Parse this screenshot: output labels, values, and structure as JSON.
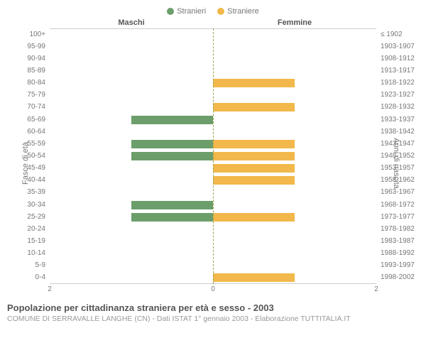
{
  "legend": {
    "male": {
      "label": "Stranieri",
      "color": "#6b9e6b"
    },
    "female": {
      "label": "Straniere",
      "color": "#f2b84b"
    }
  },
  "headers": {
    "male": "Maschi",
    "female": "Femmine"
  },
  "axis_labels": {
    "left": "Fasce di età",
    "right": "Anni di nascita"
  },
  "xlim": 2,
  "x_tick_labels": {
    "leftEnd": "2",
    "center": "0",
    "rightEnd": "2"
  },
  "center_line_color": "#a0a050",
  "background_color": "#ffffff",
  "tick_color": "#cccccc",
  "rows": [
    {
      "age": "100+",
      "birth": "≤ 1902",
      "m": 0,
      "f": 0
    },
    {
      "age": "95-99",
      "birth": "1903-1907",
      "m": 0,
      "f": 0
    },
    {
      "age": "90-94",
      "birth": "1908-1912",
      "m": 0,
      "f": 0
    },
    {
      "age": "85-89",
      "birth": "1913-1917",
      "m": 0,
      "f": 0
    },
    {
      "age": "80-84",
      "birth": "1918-1922",
      "m": 0,
      "f": 1
    },
    {
      "age": "75-79",
      "birth": "1923-1927",
      "m": 0,
      "f": 0
    },
    {
      "age": "70-74",
      "birth": "1928-1932",
      "m": 0,
      "f": 1
    },
    {
      "age": "65-69",
      "birth": "1933-1937",
      "m": 1,
      "f": 0
    },
    {
      "age": "60-64",
      "birth": "1938-1942",
      "m": 0,
      "f": 0
    },
    {
      "age": "55-59",
      "birth": "1943-1947",
      "m": 1,
      "f": 1
    },
    {
      "age": "50-54",
      "birth": "1948-1952",
      "m": 1,
      "f": 1
    },
    {
      "age": "45-49",
      "birth": "1953-1957",
      "m": 0,
      "f": 1
    },
    {
      "age": "40-44",
      "birth": "1958-1962",
      "m": 0,
      "f": 1
    },
    {
      "age": "35-39",
      "birth": "1963-1967",
      "m": 0,
      "f": 0
    },
    {
      "age": "30-34",
      "birth": "1968-1972",
      "m": 1,
      "f": 0
    },
    {
      "age": "25-29",
      "birth": "1973-1977",
      "m": 1,
      "f": 1
    },
    {
      "age": "20-24",
      "birth": "1978-1982",
      "m": 0,
      "f": 0
    },
    {
      "age": "15-19",
      "birth": "1983-1987",
      "m": 0,
      "f": 0
    },
    {
      "age": "10-14",
      "birth": "1988-1992",
      "m": 0,
      "f": 0
    },
    {
      "age": "5-9",
      "birth": "1993-1997",
      "m": 0,
      "f": 0
    },
    {
      "age": "0-4",
      "birth": "1998-2002",
      "m": 0,
      "f": 1
    }
  ],
  "footer": {
    "title": "Popolazione per cittadinanza straniera per età e sesso - 2003",
    "subtitle": "COMUNE DI SERRAVALLE LANGHE (CN) - Dati ISTAT 1° gennaio 2003 - Elaborazione TUTTITALIA.IT"
  }
}
